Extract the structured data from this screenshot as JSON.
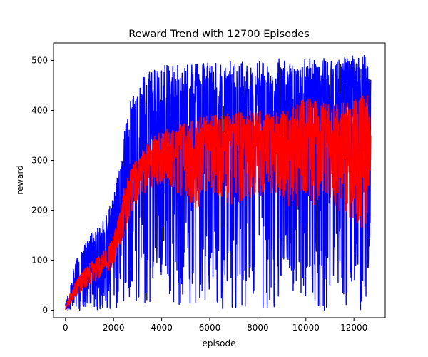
{
  "chart_data": {
    "type": "line",
    "title": "Reward Trend with 12700 Episodes",
    "xlabel": "episode",
    "ylabel": "reward",
    "xlim": [
      -500,
      13300
    ],
    "ylim": [
      -15,
      535
    ],
    "x_ticks": [
      0,
      2000,
      4000,
      6000,
      8000,
      10000,
      12000
    ],
    "x_tick_labels": [
      "0",
      "2000",
      "4000",
      "6000",
      "8000",
      "10000",
      "12000"
    ],
    "y_ticks": [
      0,
      100,
      200,
      300,
      400,
      500
    ],
    "y_tick_labels": [
      "0",
      "100",
      "200",
      "300",
      "400",
      "500"
    ],
    "grid": false,
    "series": [
      {
        "color": "#0000ff",
        "x": [
          0,
          200,
          500,
          900,
          1300,
          1700,
          2000,
          2300,
          2500,
          2800,
          3200,
          3600,
          4000,
          4500,
          5000,
          5500,
          6000,
          6500,
          7000,
          7500,
          8000,
          8500,
          9000,
          9500,
          10000,
          10500,
          11000,
          11500,
          12000,
          12500,
          12700
        ],
        "upper": [
          12,
          60,
          110,
          145,
          165,
          190,
          230,
          300,
          380,
          440,
          470,
          485,
          490,
          490,
          495,
          492,
          497,
          493,
          500,
          496,
          502,
          498,
          505,
          500,
          503,
          500,
          508,
          505,
          510,
          512,
          495
        ],
        "lower": [
          0,
          0,
          0,
          0,
          0,
          0,
          0,
          0,
          0,
          0,
          0,
          0,
          0,
          0,
          0,
          0,
          0,
          0,
          0,
          0,
          0,
          0,
          0,
          0,
          0,
          0,
          0,
          0,
          0,
          0,
          180
        ],
        "mid": [
          3,
          25,
          55,
          80,
          100,
          125,
          150,
          200,
          260,
          320,
          360,
          375,
          385,
          390,
          395,
          395,
          400,
          398,
          402,
          400,
          405,
          402,
          408,
          405,
          408,
          405,
          410,
          408,
          412,
          415,
          400
        ]
      },
      {
        "color": "#ff0000",
        "x": [
          0,
          200,
          500,
          900,
          1300,
          1700,
          2000,
          2300,
          2500,
          2800,
          3200,
          3600,
          4000,
          4500,
          5000,
          5500,
          6000,
          6500,
          7000,
          7500,
          8000,
          8500,
          9000,
          9500,
          10000,
          10500,
          11000,
          11500,
          12000,
          12500,
          12700
        ],
        "upper": [
          8,
          35,
          65,
          90,
          105,
          125,
          150,
          210,
          260,
          290,
          320,
          345,
          360,
          370,
          375,
          385,
          390,
          395,
          395,
          400,
          400,
          400,
          405,
          410,
          425,
          420,
          410,
          415,
          420,
          445,
          400
        ],
        "lower": [
          0,
          10,
          30,
          45,
          60,
          75,
          90,
          130,
          160,
          200,
          230,
          240,
          250,
          240,
          220,
          200,
          230,
          210,
          200,
          220,
          210,
          230,
          220,
          200,
          230,
          200,
          220,
          190,
          180,
          150,
          300
        ],
        "mid": [
          3,
          22,
          48,
          65,
          82,
          100,
          120,
          170,
          220,
          260,
          280,
          295,
          305,
          310,
          315,
          320,
          330,
          325,
          330,
          335,
          330,
          335,
          340,
          340,
          350,
          340,
          345,
          345,
          350,
          340,
          360
        ]
      }
    ]
  }
}
